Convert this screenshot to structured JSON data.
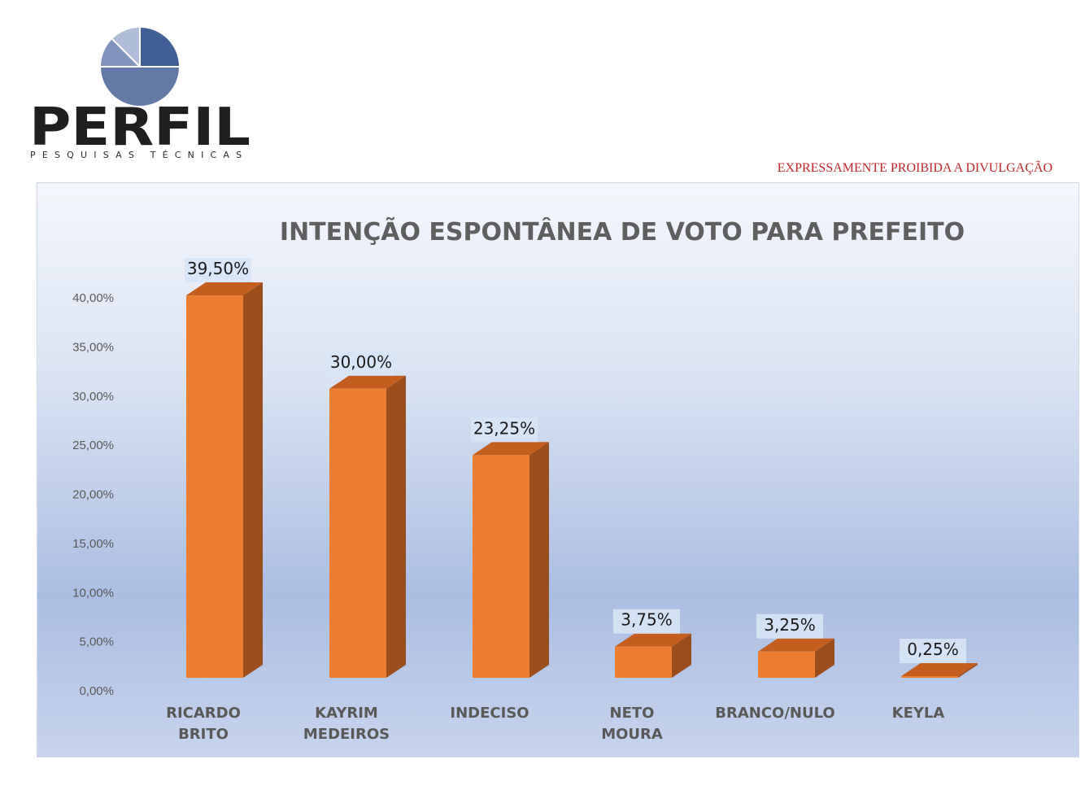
{
  "logo": {
    "icon": "pie-chart-logo-icon",
    "wordmark": "PERFIL",
    "tagline": "PESQUISAS TÉCNICAS"
  },
  "notice": "EXPRESSAMENTE PROIBIDA A DIVULGAÇÃO",
  "colors": {
    "bar_front": "#ed7d31",
    "bar_side": "#9c4d1c",
    "bar_top": "#c45e1e",
    "notice": "#c0272d",
    "title": "#5f5f5f",
    "axis_text": "#595959"
  },
  "chart_data": {
    "type": "bar",
    "title": "INTENÇÃO ESPONTÂNEA DE VOTO PARA PREFEITO",
    "xlabel": "",
    "ylabel": "",
    "ylim": [
      0,
      40
    ],
    "yticks": [
      "0,00%",
      "5,00%",
      "10,00%",
      "15,00%",
      "20,00%",
      "25,00%",
      "30,00%",
      "35,00%",
      "40,00%"
    ],
    "categories": [
      [
        "RICARDO",
        "BRITO"
      ],
      [
        "KAYRIM",
        "MEDEIROS"
      ],
      [
        "INDECISO"
      ],
      [
        "NETO",
        "MOURA"
      ],
      [
        "BRANCO/NULO"
      ],
      [
        "KEYLA"
      ]
    ],
    "values": [
      39.5,
      30.0,
      23.25,
      3.75,
      3.25,
      0.25
    ],
    "data_labels": [
      "39,50%",
      "30,00%",
      "23,25%",
      "3,75%",
      "3,25%",
      "0,25%"
    ],
    "grid": false,
    "legend": "none",
    "style": "3d-column"
  }
}
